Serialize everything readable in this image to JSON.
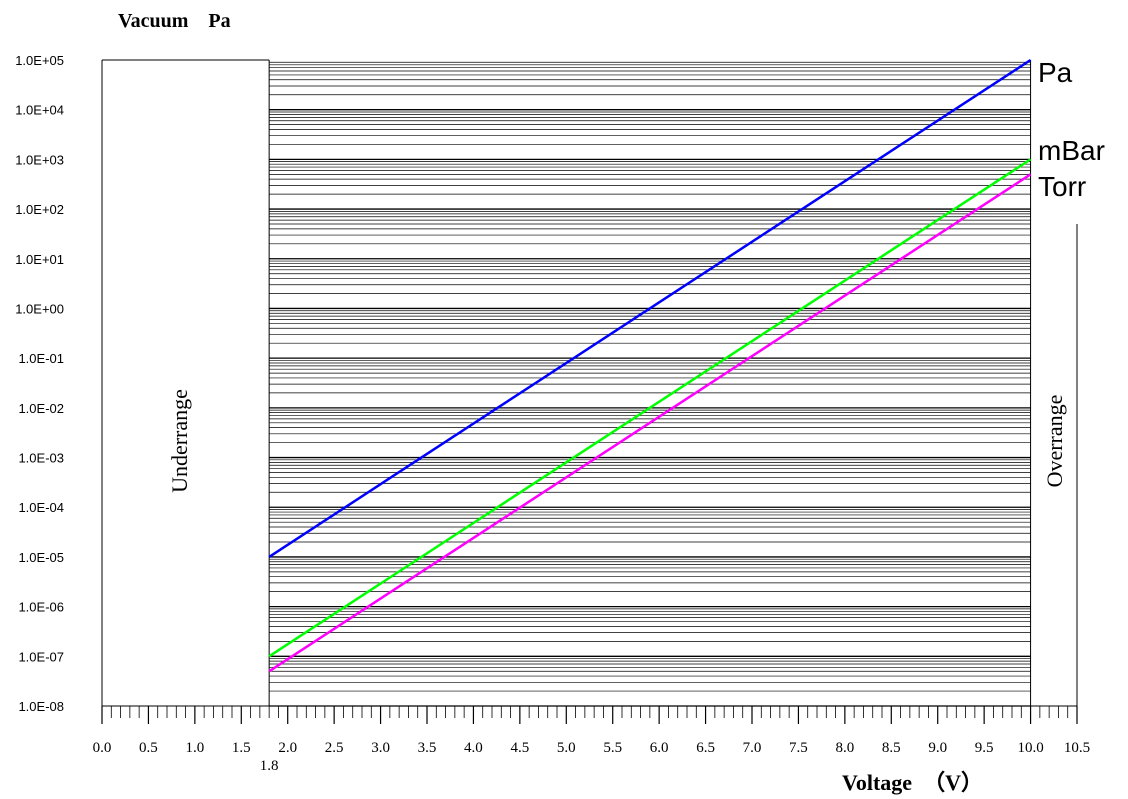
{
  "chart_data": {
    "type": "line",
    "title": "Vacuum    Pa",
    "xlabel": "Voltage  （V）",
    "ylabel": "",
    "xlim": [
      0.0,
      10.5
    ],
    "ylim": [
      1e-08,
      100000.0
    ],
    "y_scale": "log",
    "grid": true,
    "x_ticks": [
      "0.0",
      "0.5",
      "1.0",
      "1.5",
      "2.0",
      "2.5",
      "3.0",
      "3.5",
      "4.0",
      "4.5",
      "5.0",
      "5.5",
      "6.0",
      "6.5",
      "7.0",
      "7.5",
      "8.0",
      "8.5",
      "9.0",
      "9.5",
      "10.0",
      "10.5"
    ],
    "y_ticks": [
      "1.0E-08",
      "1.0E-07",
      "1.0E-06",
      "1.0E-05",
      "1.0E-04",
      "1.0E-03",
      "1.0E-02",
      "1.0E-01",
      "1.0E+00",
      "1.0E+01",
      "1.0E+02",
      "1.0E+03",
      "1.0E+04",
      "1.0E+05"
    ],
    "x_tick_overlap_label": "1.8",
    "regions": [
      {
        "label": "Underrange",
        "x_range": [
          0.0,
          1.8
        ]
      },
      {
        "label": "Overrange",
        "x_range": [
          10.0,
          10.5
        ]
      }
    ],
    "series": [
      {
        "name": "Pa",
        "color": "#0000ff",
        "x": [
          1.8,
          10.0
        ],
        "y": [
          1e-05,
          100000.0
        ]
      },
      {
        "name": "mBar",
        "color": "#00ff00",
        "x": [
          1.8,
          10.0
        ],
        "y": [
          1e-07,
          1000.0
        ]
      },
      {
        "name": "Torr",
        "color": "#ff00ff",
        "x": [
          1.8,
          10.0
        ],
        "y": [
          5e-08,
          500.0
        ]
      }
    ]
  }
}
